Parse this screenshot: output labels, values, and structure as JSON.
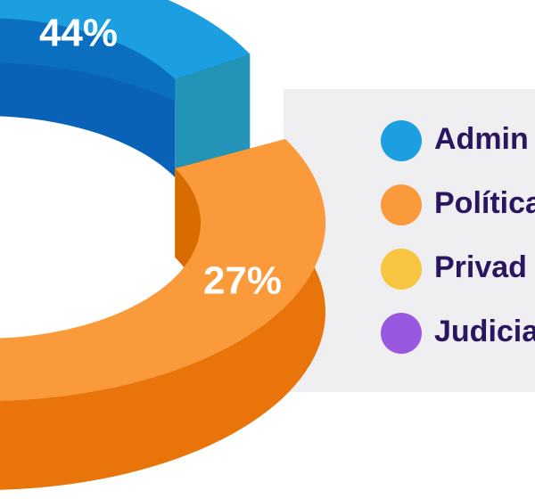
{
  "chart_data": {
    "type": "pie",
    "categories": [
      "Admin",
      "Política",
      "Privad",
      "Judicia"
    ],
    "values": [
      44,
      27,
      null,
      null
    ],
    "value_labels": [
      "44%",
      "27%",
      null,
      null
    ],
    "colors": [
      "#1c9fe0",
      "#fb9a3a",
      "#f7c540",
      "#9a57e0"
    ]
  }
}
